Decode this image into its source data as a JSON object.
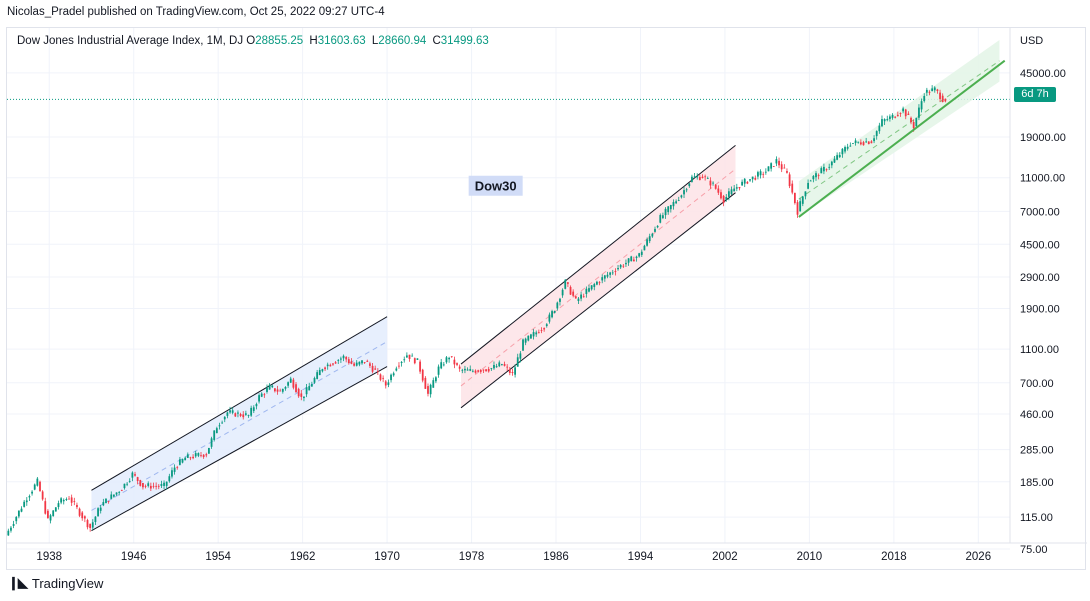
{
  "publisher_line": "Nicolas_Pradel published on TradingView.com, Oct 25, 2022 09:27 UTC-4",
  "legend": {
    "symbol": "Dow Jones Industrial Average Index, 1M, DJ",
    "o_label": "O",
    "o_value": "28855.25",
    "h_label": "H",
    "h_value": "31603.63",
    "l_label": "L",
    "l_value": "28660.94",
    "c_label": "C",
    "c_value": "31499.63"
  },
  "annotation_label": "Dow30",
  "countdown_tag": "6d 7h",
  "footer": {
    "brand": "TradingView"
  },
  "colors": {
    "up": "#089981",
    "down": "#f23645",
    "green_line": "#4caf50",
    "blue_fill": "#e3ecfd",
    "red_fill": "#fde3e6",
    "green_fill": "#e3f4e6",
    "label_bg": "#d1dcf7",
    "grid": "#f0f3fa"
  },
  "chart_data": {
    "type": "candlestick",
    "title": "Dow Jones Industrial Average Index, 1M, DJ",
    "y_axis": {
      "scale": "log",
      "unit": "USD",
      "range": [
        75,
        70000
      ],
      "ticks": [
        "75.00",
        "115.00",
        "185.00",
        "285.00",
        "460.00",
        "700.00",
        "1100.00",
        "1900.00",
        "2900.00",
        "4500.00",
        "7000.00",
        "11000.00",
        "19000.00",
        "45000.00"
      ]
    },
    "x_axis": {
      "range": [
        1934,
        2029
      ],
      "ticks": [
        "1938",
        "1946",
        "1954",
        "1962",
        "1970",
        "1978",
        "1986",
        "1994",
        "2002",
        "2010",
        "2018",
        "2026"
      ]
    },
    "price_path": [
      [
        1934,
        90
      ],
      [
        1936,
        150
      ],
      [
        1937,
        185
      ],
      [
        1938,
        110
      ],
      [
        1939,
        140
      ],
      [
        1940,
        150
      ],
      [
        1942,
        100
      ],
      [
        1943,
        135
      ],
      [
        1945,
        170
      ],
      [
        1946,
        205
      ],
      [
        1947,
        175
      ],
      [
        1949,
        175
      ],
      [
        1950,
        225
      ],
      [
        1951,
        255
      ],
      [
        1953,
        270
      ],
      [
        1954,
        390
      ],
      [
        1955,
        470
      ],
      [
        1957,
        450
      ],
      [
        1958,
        580
      ],
      [
        1959,
        660
      ],
      [
        1960,
        620
      ],
      [
        1961,
        730
      ],
      [
        1962,
        570
      ],
      [
        1964,
        860
      ],
      [
        1966,
        990
      ],
      [
        1967,
        880
      ],
      [
        1968,
        940
      ],
      [
        1969,
        820
      ],
      [
        1970,
        680
      ],
      [
        1971,
        880
      ],
      [
        1972,
        1020
      ],
      [
        1973,
        930
      ],
      [
        1974,
        600
      ],
      [
        1975,
        850
      ],
      [
        1976,
        1000
      ],
      [
        1977,
        830
      ],
      [
        1978,
        820
      ],
      [
        1980,
        850
      ],
      [
        1981,
        900
      ],
      [
        1982,
        780
      ],
      [
        1983,
        1200
      ],
      [
        1985,
        1500
      ],
      [
        1986,
        1900
      ],
      [
        1987,
        2700
      ],
      [
        1988,
        2100
      ],
      [
        1990,
        2700
      ],
      [
        1992,
        3300
      ],
      [
        1994,
        3900
      ],
      [
        1996,
        6400
      ],
      [
        1998,
        8800
      ],
      [
        1999,
        11000
      ],
      [
        2000,
        11200
      ],
      [
        2001,
        10000
      ],
      [
        2002,
        8200
      ],
      [
        2003,
        9500
      ],
      [
        2004,
        10400
      ],
      [
        2006,
        12000
      ],
      [
        2007,
        13800
      ],
      [
        2008,
        11500
      ],
      [
        2009,
        7000
      ],
      [
        2010,
        10500
      ],
      [
        2012,
        13000
      ],
      [
        2014,
        17500
      ],
      [
        2016,
        18000
      ],
      [
        2017,
        23500
      ],
      [
        2018,
        25000
      ],
      [
        2019,
        27500
      ],
      [
        2020,
        22000
      ],
      [
        2021,
        34500
      ],
      [
        2022,
        36000
      ],
      [
        2022.8,
        31500
      ]
    ],
    "channels": [
      {
        "name": "channel-1942-1970",
        "lower_start": [
          1942,
          96
        ],
        "lower_end": [
          1970,
          870
        ],
        "upper_start": [
          1942,
          165
        ],
        "upper_end": [
          1970,
          1700
        ],
        "fill": "blue"
      },
      {
        "name": "channel-1977-2003",
        "lower_start": [
          1977,
          500
        ],
        "lower_end": [
          2003,
          9000
        ],
        "upper_start": [
          1977,
          900
        ],
        "upper_end": [
          2003,
          17000
        ],
        "fill": "red"
      },
      {
        "name": "channel-2009-2028",
        "lower_start": [
          2009,
          6500
        ],
        "lower_end": [
          2028,
          40000
        ],
        "upper_start": [
          2009,
          10500
        ],
        "upper_end": [
          2028,
          70000
        ],
        "fill": "green"
      }
    ],
    "trendline": {
      "start": [
        2009,
        6500
      ],
      "end": [
        2028.5,
        53000
      ]
    },
    "last_price_line": 31499.63
  }
}
